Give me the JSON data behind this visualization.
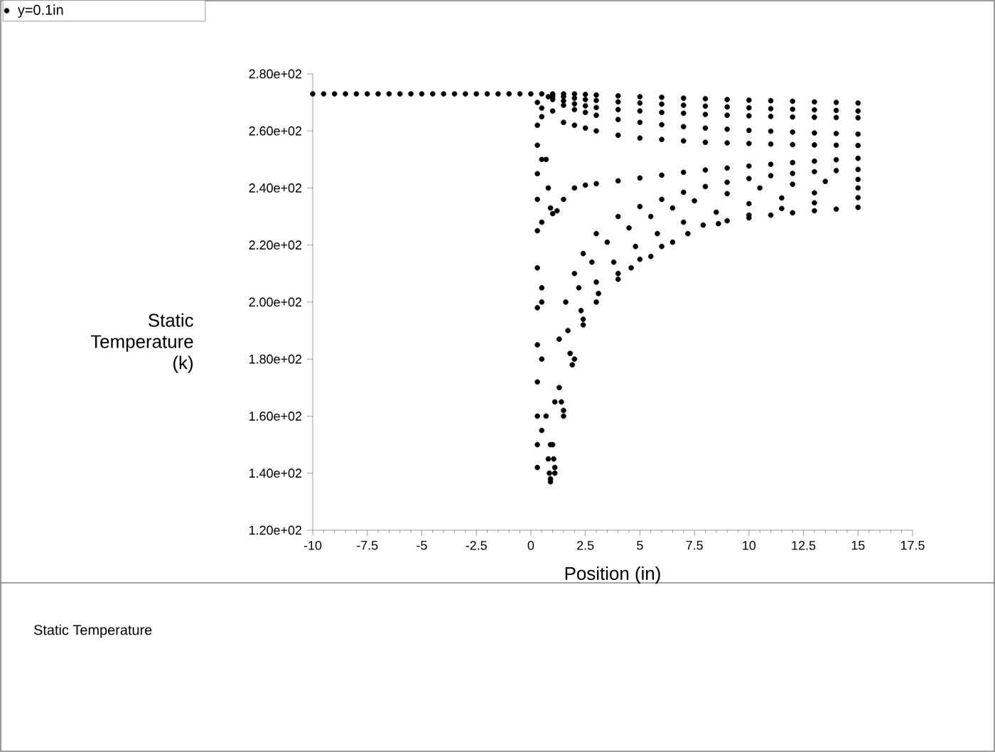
{
  "chart_data": {
    "type": "scatter",
    "xlabel": "Position (in)",
    "ylabel": "Static Temperature (k)",
    "annotations": [
      "Static Temperature"
    ],
    "xlim": [
      -10,
      17.5
    ],
    "ylim": [
      120,
      280
    ],
    "xticks": [
      -10,
      -7.5,
      -5,
      -2.5,
      0,
      2.5,
      5,
      7.5,
      10,
      12.5,
      15,
      17.5
    ],
    "yticks": [
      {
        "value": 120,
        "label": "1.20e+02"
      },
      {
        "value": 140,
        "label": "1.40e+02"
      },
      {
        "value": 160,
        "label": "1.60e+02"
      },
      {
        "value": 180,
        "label": "1.80e+02"
      },
      {
        "value": 200,
        "label": "2.00e+02"
      },
      {
        "value": 220,
        "label": "2.20e+02"
      },
      {
        "value": 240,
        "label": "2.40e+02"
      },
      {
        "value": 260,
        "label": "2.60e+02"
      },
      {
        "value": 280,
        "label": "2.80e+02"
      }
    ],
    "legend": "top left",
    "marker": "circle",
    "grid": false,
    "series": [
      {
        "name": "y=0.1in",
        "color": "#000000",
        "x": [
          -10,
          -9.5,
          -9,
          -8.5,
          -8,
          -7.5,
          -7,
          -6.5,
          -6,
          -5.5,
          -5,
          -4.5,
          -4,
          -3.5,
          -3,
          -2.5,
          -2,
          -1.5,
          -1,
          -0.5,
          0,
          0.5,
          1,
          1.5,
          2,
          2.5,
          3,
          4,
          5,
          6,
          7,
          8,
          9,
          10,
          11,
          12,
          13,
          14,
          15,
          1,
          1.5,
          2,
          2.5,
          3,
          4,
          5,
          6,
          7,
          8,
          9,
          10,
          11,
          12,
          13,
          14,
          15,
          1,
          1.5,
          2,
          2.5,
          3,
          4,
          5,
          6,
          7,
          8,
          9,
          10,
          11,
          12,
          13,
          14,
          15,
          1,
          1.5,
          2,
          2.5,
          3,
          4,
          5,
          6,
          7,
          8,
          9,
          10,
          11,
          12,
          13,
          14,
          15,
          0.8,
          1,
          1.5,
          2,
          2.5,
          3,
          4,
          5,
          6,
          7,
          8,
          9,
          10,
          11,
          12,
          13,
          14,
          15,
          0.5,
          0.7,
          0.8,
          0.9,
          1,
          1.2,
          1.5,
          2,
          2.5,
          3,
          4,
          5,
          6,
          7,
          8,
          9,
          10,
          11,
          12,
          13,
          14,
          15,
          0.5,
          0.7,
          0.9,
          1.1,
          1.3,
          1.6,
          2,
          2.4,
          3,
          4,
          5,
          6,
          7,
          8,
          9,
          10,
          11,
          12,
          13,
          14,
          15,
          0.8,
          1,
          1.3,
          1.7,
          2.2,
          2.8,
          3.5,
          4.5,
          5.5,
          6.5,
          7.5,
          9,
          10.5,
          12,
          13.5,
          15,
          0.85,
          1.05,
          1.4,
          1.8,
          2.3,
          3,
          3.8,
          4.8,
          5.8,
          7,
          8.5,
          10,
          11.5,
          13,
          15,
          0.9,
          1.1,
          1.5,
          1.9,
          2.4,
          3.1,
          4,
          5,
          6,
          7.2,
          8.6,
          10,
          11.5,
          13,
          15,
          0.9,
          1.1,
          1.5,
          2,
          2.4,
          3,
          4,
          4.6,
          5.5,
          6.5,
          7.9,
          9,
          10,
          11,
          12,
          13,
          14,
          15,
          0.3,
          0.3,
          0.3,
          0.3,
          0.3,
          0.3,
          0.3,
          0.3,
          0.3,
          0.3,
          0.3,
          0.3,
          0.3,
          0.5,
          0.5,
          0.5,
          0.5,
          0.5,
          0.5
        ],
        "values": [
          273,
          273,
          273,
          273,
          273,
          273,
          273,
          273,
          273,
          273,
          273,
          273,
          273,
          273,
          273,
          273,
          273,
          273,
          273,
          273,
          273,
          273,
          273,
          273,
          273,
          272.8,
          272.6,
          272.3,
          272,
          271.8,
          271.5,
          271.3,
          271,
          270.8,
          270.6,
          270.4,
          270.2,
          270,
          269.8,
          272.5,
          272,
          271.5,
          271,
          270.7,
          270.2,
          269.8,
          269.4,
          269,
          268.7,
          268.4,
          268.1,
          267.8,
          267.6,
          267.4,
          267.2,
          267,
          272,
          270.5,
          269.5,
          268.8,
          268.2,
          267.5,
          267,
          266.5,
          266.2,
          265.8,
          265.5,
          265.3,
          265.1,
          264.9,
          264.8,
          264.7,
          264.6,
          271,
          269,
          267.5,
          266.5,
          265.5,
          264,
          263,
          262.2,
          261.5,
          261,
          260.6,
          260.2,
          259.9,
          259.6,
          259.3,
          259.1,
          258.9,
          272,
          267,
          263,
          262,
          261,
          260,
          258.5,
          257.5,
          257,
          256.5,
          256,
          255.8,
          255.6,
          255.4,
          255.2,
          255.1,
          255,
          254.9,
          268,
          250,
          240,
          233,
          231,
          232,
          236,
          240,
          241,
          241.5,
          242.5,
          243.5,
          244.5,
          245.5,
          246.3,
          247,
          247.7,
          248.3,
          248.9,
          249.4,
          249.9,
          250.4,
          200,
          160,
          150,
          165,
          187,
          200,
          210,
          217,
          224,
          230,
          233.5,
          236,
          238.5,
          240.5,
          242,
          243.3,
          244.3,
          245.1,
          245.7,
          246.1,
          246.5,
          145,
          150,
          170,
          190,
          205,
          214,
          221,
          226,
          230,
          233,
          235.5,
          238,
          240,
          241.3,
          242.3,
          243,
          140,
          145,
          165,
          182,
          197,
          207,
          214,
          219.5,
          224,
          228,
          231.5,
          234.5,
          236.5,
          238.3,
          240,
          138,
          142,
          162,
          178,
          194,
          203,
          210,
          215,
          219.5,
          224,
          227.5,
          230.5,
          232.8,
          234.8,
          236.6,
          137,
          140,
          160,
          180,
          192,
          200,
          208,
          212,
          216,
          221,
          227,
          228.5,
          229.5,
          230.5,
          231.3,
          232,
          232.6,
          233.2,
          270,
          262,
          255,
          245,
          236,
          225,
          212,
          198,
          185,
          172,
          160,
          150,
          142,
          265,
          250,
          228,
          205,
          180,
          155
        ]
      }
    ]
  }
}
